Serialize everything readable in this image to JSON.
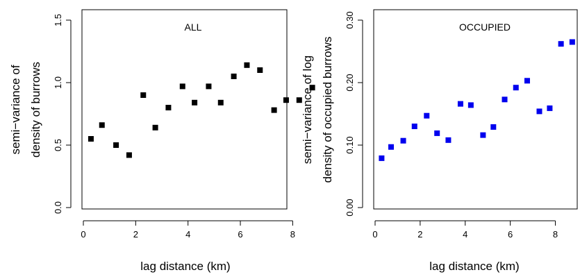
{
  "chart_data": [
    {
      "type": "scatter",
      "title": "ALL",
      "xlabel": "lag distance (km)",
      "ylabel_lines": [
        "semi−variance of",
        "density of burrows"
      ],
      "xlim": [
        0,
        8.8
      ],
      "ylim": [
        0,
        1.5
      ],
      "xticks": [
        0,
        2,
        4,
        6,
        8
      ],
      "xtick_labels": [
        "0",
        "2",
        "4",
        "6",
        "8"
      ],
      "yticks": [
        0,
        0.5,
        1.0,
        1.5
      ],
      "ytick_labels": [
        "0.0",
        "0.5",
        "1.0",
        "1.5"
      ],
      "color": "#000000",
      "x": [
        0.29,
        0.71,
        1.25,
        1.75,
        2.29,
        2.75,
        3.25,
        3.79,
        4.25,
        4.79,
        5.25,
        5.75,
        6.25,
        6.75,
        7.29,
        7.75,
        8.25,
        8.75
      ],
      "y": [
        0.55,
        0.66,
        0.5,
        0.42,
        0.9,
        0.64,
        0.8,
        0.97,
        0.84,
        0.97,
        0.84,
        1.05,
        1.14,
        1.1,
        0.78,
        0.86,
        0.86,
        0.96
      ]
    },
    {
      "type": "scatter",
      "title": "OCCUPIED",
      "xlabel": "lag distance (km)",
      "ylabel_lines": [
        "semi−variance of log",
        "density of occupied burrows"
      ],
      "xlim": [
        0,
        8.8
      ],
      "ylim": [
        0,
        0.3
      ],
      "xticks": [
        0,
        2,
        4,
        6,
        8
      ],
      "xtick_labels": [
        "0",
        "2",
        "4",
        "6",
        "8"
      ],
      "yticks": [
        0,
        0.1,
        0.2,
        0.3
      ],
      "ytick_labels": [
        "0.00",
        "0.10",
        "0.20",
        "0.30"
      ],
      "color": "#0000ee",
      "x": [
        0.29,
        0.71,
        1.25,
        1.75,
        2.29,
        2.75,
        3.25,
        3.79,
        4.25,
        4.79,
        5.25,
        5.75,
        6.25,
        6.75,
        7.29,
        7.75,
        8.25,
        8.75
      ],
      "y": [
        0.079,
        0.097,
        0.107,
        0.13,
        0.147,
        0.119,
        0.108,
        0.166,
        0.164,
        0.116,
        0.129,
        0.173,
        0.192,
        0.203,
        0.154,
        0.159,
        0.262,
        0.265
      ]
    }
  ]
}
